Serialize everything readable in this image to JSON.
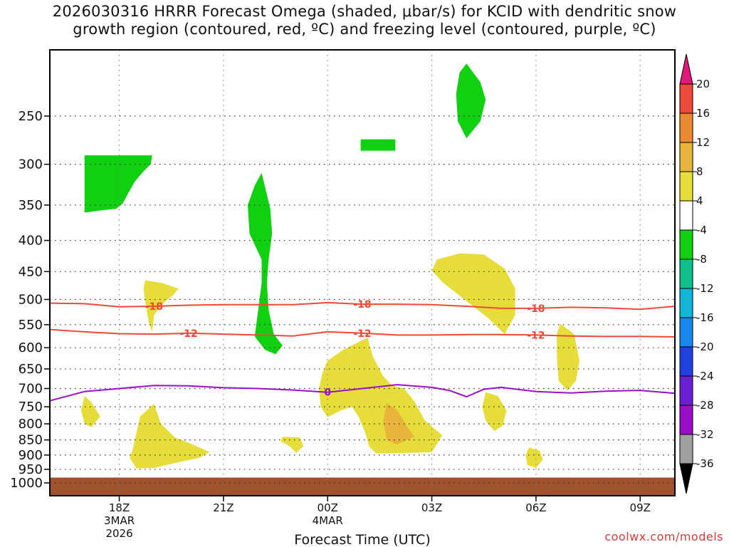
{
  "title_line1": "2026030316 HRRR Forecast Omega (shaded, μbar/s) for KCID with dendritic snow",
  "title_line2": "growth region (contoured, red, ºC) and freezing level (contoured, purple, ºC)",
  "credit": "coolwx.com/models",
  "chart_data": {
    "type": "time-height cross section",
    "title": "2026030316 HRRR Forecast Omega (shaded, μbar/s) for KCID with dendritic snow growth region (contoured, red, ºC) and freezing level (contoured, purple, ºC)",
    "xlabel": "Forecast Time (UTC)",
    "ylabel": "",
    "x_unit": "forecast hour from 2026030316",
    "xlim": [
      0,
      18
    ],
    "ylim": [
      1000,
      200
    ],
    "y_scale": "log pressure (hPa)",
    "y_ticks": [
      250,
      300,
      350,
      400,
      450,
      500,
      550,
      600,
      650,
      700,
      750,
      800,
      850,
      900,
      950,
      1000
    ],
    "x_ticks": [
      {
        "hour": 2,
        "lines": [
          "18Z",
          "3MAR",
          "2026"
        ]
      },
      {
        "hour": 5,
        "lines": [
          "21Z"
        ]
      },
      {
        "hour": 8,
        "lines": [
          "00Z",
          "4MAR"
        ]
      },
      {
        "hour": 11,
        "lines": [
          "03Z"
        ]
      },
      {
        "hour": 14,
        "lines": [
          "06Z"
        ]
      },
      {
        "hour": 17,
        "lines": [
          "09Z"
        ]
      }
    ],
    "grid": true,
    "colorbar": {
      "labels": [
        "20",
        "16",
        "12",
        "8",
        "4",
        "-4",
        "-8",
        "-12",
        "-16",
        "-20",
        "-24",
        "-28",
        "-32",
        "-36"
      ],
      "bins": [
        {
          "range": "-36 to -32",
          "color": "#a0a0a0"
        },
        {
          "range": "-32 to -28",
          "color": "#9a10c8"
        },
        {
          "range": "-28 to -24",
          "color": "#6a1fd0"
        },
        {
          "range": "-24 to -20",
          "color": "#2040e0"
        },
        {
          "range": "-20 to -16",
          "color": "#1a86f0"
        },
        {
          "range": "-16 to -12",
          "color": "#12b4d8"
        },
        {
          "range": "-12 to -8",
          "color": "#0ec08a"
        },
        {
          "range": "-8 to -4",
          "color": "#11d011"
        },
        {
          "range": "-4 to 4",
          "color": "#ffffff"
        },
        {
          "range": "4 to 8",
          "color": "#e6dc3a"
        },
        {
          "range": "8 to 12",
          "color": "#e8b43a"
        },
        {
          "range": "12 to 16",
          "color": "#ea8a30"
        },
        {
          "range": "16 to 20",
          "color": "#ee4a3a"
        }
      ],
      "over_color": "#e0197a",
      "under_color": "#000000"
    },
    "shaded_regions": [
      {
        "omega": "-8 to -4",
        "color": "#11d011",
        "points": [
          [
            1.0,
            290
          ],
          [
            2.95,
            290
          ],
          [
            2.9,
            300
          ],
          [
            2.7,
            308
          ],
          [
            2.45,
            320
          ],
          [
            2.25,
            335
          ],
          [
            2.1,
            348
          ],
          [
            1.9,
            355
          ],
          [
            1.5,
            357
          ],
          [
            1.0,
            360
          ]
        ]
      },
      {
        "omega": "-8 to -4",
        "color": "#11d011",
        "points": [
          [
            6.1,
            310
          ],
          [
            6.35,
            355
          ],
          [
            6.4,
            390
          ],
          [
            6.3,
            430
          ],
          [
            6.25,
            470
          ],
          [
            6.3,
            520
          ],
          [
            6.45,
            570
          ],
          [
            6.7,
            595
          ],
          [
            6.5,
            615
          ],
          [
            6.2,
            605
          ],
          [
            5.9,
            575
          ],
          [
            6.0,
            520
          ],
          [
            6.1,
            470
          ],
          [
            6.1,
            430
          ],
          [
            5.75,
            390
          ],
          [
            5.7,
            350
          ],
          [
            5.9,
            325
          ]
        ]
      },
      {
        "omega": "-8 to -4",
        "color": "#11d011",
        "points": [
          [
            8.95,
            273
          ],
          [
            9.95,
            273
          ],
          [
            9.95,
            285
          ],
          [
            8.95,
            285
          ]
        ]
      },
      {
        "omega": "-8 to -4",
        "color": "#11d011",
        "points": [
          [
            12.0,
            205
          ],
          [
            12.4,
            220
          ],
          [
            12.55,
            235
          ],
          [
            12.4,
            255
          ],
          [
            12.0,
            272
          ],
          [
            11.75,
            255
          ],
          [
            11.7,
            230
          ],
          [
            11.8,
            212
          ]
        ]
      },
      {
        "omega": "4 to 8",
        "color": "#e6dc3a",
        "points": [
          [
            2.75,
            465
          ],
          [
            3.25,
            470
          ],
          [
            3.7,
            480
          ],
          [
            3.55,
            492
          ],
          [
            3.3,
            505
          ],
          [
            3.0,
            530
          ],
          [
            2.95,
            565
          ],
          [
            2.85,
            545
          ],
          [
            2.75,
            505
          ],
          [
            2.7,
            480
          ]
        ]
      },
      {
        "omega": "4 to 8",
        "color": "#e6dc3a",
        "points": [
          [
            1.0,
            720
          ],
          [
            1.2,
            738
          ],
          [
            1.45,
            778
          ],
          [
            1.2,
            810
          ],
          [
            1.0,
            800
          ],
          [
            0.9,
            760
          ]
        ]
      },
      {
        "omega": "4 to 8",
        "color": "#e6dc3a",
        "points": [
          [
            2.6,
            778
          ],
          [
            3.0,
            742
          ],
          [
            3.2,
            800
          ],
          [
            3.6,
            842
          ],
          [
            4.05,
            862
          ],
          [
            4.6,
            890
          ],
          [
            4.3,
            910
          ],
          [
            3.7,
            925
          ],
          [
            3.0,
            945
          ],
          [
            2.5,
            947
          ],
          [
            2.3,
            910
          ],
          [
            2.4,
            875
          ],
          [
            2.5,
            825
          ]
        ]
      },
      {
        "omega": "4 to 8",
        "color": "#e6dc3a",
        "points": [
          [
            6.7,
            840
          ],
          [
            7.2,
            842
          ],
          [
            7.3,
            870
          ],
          [
            7.1,
            893
          ],
          [
            6.9,
            870
          ],
          [
            6.65,
            855
          ]
        ]
      },
      {
        "omega": "4 to 8",
        "color": "#e6dc3a",
        "points": [
          [
            8.0,
            630
          ],
          [
            8.45,
            605
          ],
          [
            8.95,
            585
          ],
          [
            9.15,
            578
          ],
          [
            9.3,
            620
          ],
          [
            9.6,
            668
          ],
          [
            9.85,
            692
          ],
          [
            10.2,
            700
          ],
          [
            10.5,
            735
          ],
          [
            10.8,
            790
          ],
          [
            11.3,
            835
          ],
          [
            11.0,
            890
          ],
          [
            10.2,
            893
          ],
          [
            9.4,
            895
          ],
          [
            9.2,
            873
          ],
          [
            9.1,
            833
          ],
          [
            8.9,
            780
          ],
          [
            8.7,
            750
          ],
          [
            8.4,
            760
          ],
          [
            8.0,
            780
          ],
          [
            7.8,
            750
          ],
          [
            7.75,
            700
          ],
          [
            7.85,
            660
          ]
        ]
      },
      {
        "omega": "8 to 12",
        "color": "#e8b43a",
        "points": [
          [
            9.7,
            740
          ],
          [
            10.0,
            760
          ],
          [
            10.3,
            810
          ],
          [
            10.5,
            840
          ],
          [
            10.0,
            865
          ],
          [
            9.7,
            850
          ],
          [
            9.6,
            790
          ]
        ]
      },
      {
        "omega": "4 to 8",
        "color": "#e6dc3a",
        "points": [
          [
            11.15,
            430
          ],
          [
            11.8,
            420
          ],
          [
            12.5,
            422
          ],
          [
            13.1,
            445
          ],
          [
            13.4,
            480
          ],
          [
            13.4,
            530
          ],
          [
            13.1,
            570
          ],
          [
            12.6,
            535
          ],
          [
            11.9,
            498
          ],
          [
            11.3,
            468
          ],
          [
            11.0,
            448
          ]
        ]
      },
      {
        "omega": "4 to 8",
        "color": "#e6dc3a",
        "points": [
          [
            12.55,
            710
          ],
          [
            12.9,
            720
          ],
          [
            13.15,
            760
          ],
          [
            13.05,
            805
          ],
          [
            12.8,
            822
          ],
          [
            12.55,
            790
          ],
          [
            12.45,
            750
          ]
        ]
      },
      {
        "omega": "4 to 8",
        "color": "#e6dc3a",
        "points": [
          [
            14.7,
            548
          ],
          [
            15.1,
            570
          ],
          [
            15.25,
            630
          ],
          [
            15.15,
            680
          ],
          [
            14.9,
            705
          ],
          [
            14.65,
            680
          ],
          [
            14.6,
            620
          ],
          [
            14.6,
            570
          ]
        ]
      },
      {
        "omega": "4 to 8",
        "color": "#e6dc3a",
        "points": [
          [
            13.8,
            875
          ],
          [
            14.1,
            885
          ],
          [
            14.2,
            915
          ],
          [
            14.0,
            945
          ],
          [
            13.75,
            935
          ],
          [
            13.7,
            900
          ]
        ]
      }
    ],
    "contours": [
      {
        "name": "-18",
        "kind": "dendritic snow growth",
        "color": "#ee4a3a",
        "points": [
          [
            0,
            507
          ],
          [
            1,
            508
          ],
          [
            2,
            514
          ],
          [
            3,
            513
          ],
          [
            4,
            511
          ],
          [
            5,
            510
          ],
          [
            6,
            510
          ],
          [
            7,
            510
          ],
          [
            8,
            506
          ],
          [
            9,
            509
          ],
          [
            10,
            509
          ],
          [
            11,
            510
          ],
          [
            12,
            513
          ],
          [
            13,
            517
          ],
          [
            14,
            517
          ],
          [
            15,
            515
          ],
          [
            16,
            516
          ],
          [
            17,
            519
          ],
          [
            18,
            513
          ]
        ],
        "label_positions": [
          [
            3.0,
            513
          ],
          [
            9.0,
            509
          ],
          [
            14.0,
            517
          ]
        ]
      },
      {
        "name": "-12",
        "kind": "dendritic snow growth",
        "color": "#ee4a3a",
        "points": [
          [
            0,
            560
          ],
          [
            1,
            565
          ],
          [
            2,
            569
          ],
          [
            3,
            570
          ],
          [
            4,
            568
          ],
          [
            5,
            570
          ],
          [
            6,
            572
          ],
          [
            7,
            574
          ],
          [
            8,
            565
          ],
          [
            9,
            568
          ],
          [
            10,
            572
          ],
          [
            11,
            572
          ],
          [
            12,
            571
          ],
          [
            13,
            571
          ],
          [
            14,
            572
          ],
          [
            15,
            574
          ],
          [
            16,
            575
          ],
          [
            17,
            575
          ],
          [
            18,
            576
          ]
        ],
        "label_positions": [
          [
            4.0,
            568
          ],
          [
            9.0,
            568
          ],
          [
            14.0,
            572
          ]
        ]
      },
      {
        "name": "0",
        "kind": "freezing level",
        "color": "#9a10c8",
        "points": [
          [
            0,
            733
          ],
          [
            1,
            708
          ],
          [
            2,
            700
          ],
          [
            3,
            692
          ],
          [
            4,
            693
          ],
          [
            5,
            698
          ],
          [
            6,
            700
          ],
          [
            7,
            704
          ],
          [
            8,
            710
          ],
          [
            9,
            700
          ],
          [
            10,
            690
          ],
          [
            11,
            697
          ],
          [
            11.5,
            705
          ],
          [
            12.0,
            722
          ],
          [
            12.5,
            702
          ],
          [
            13,
            697
          ],
          [
            14,
            708
          ],
          [
            15,
            712
          ],
          [
            16,
            707
          ],
          [
            17,
            705
          ],
          [
            18,
            713
          ]
        ],
        "label_positions": [
          [
            8.0,
            710
          ]
        ]
      }
    ],
    "surface_band": {
      "from": 980,
      "to": 1030,
      "color": "#a0522d"
    }
  }
}
